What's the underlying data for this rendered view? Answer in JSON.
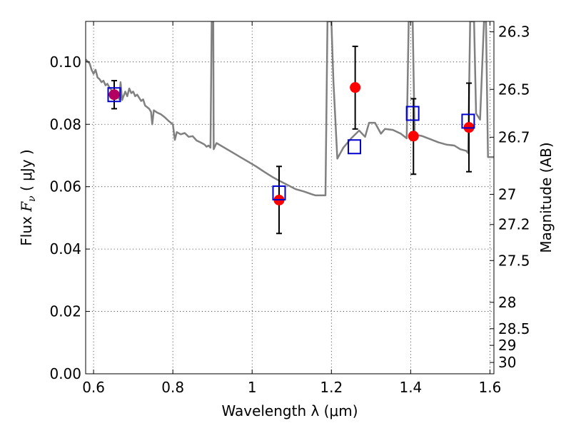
{
  "chart_data": {
    "type": "scatter",
    "xlabel": "Wavelength  λ (μm)",
    "ylabel": "Flux  Fν  ( μJy )",
    "ylabel_parts": {
      "prefix": "Flux ",
      "symbol": "F",
      "subscript": "ν",
      "suffix": " ( μJy )"
    },
    "right_ylabel": "Magnitude (AB)",
    "xlim": [
      0.58,
      1.61
    ],
    "ylim": [
      0.0,
      0.113
    ],
    "xticks": [
      0.6,
      0.8,
      1.0,
      1.2,
      1.4,
      1.6
    ],
    "xtick_labels": [
      "0.6",
      "0.8",
      "1",
      "1.2",
      "1.4",
      "1.6"
    ],
    "yticks": [
      0.0,
      0.02,
      0.04,
      0.06,
      0.08,
      0.1
    ],
    "ytick_labels": [
      "0.00",
      "0.02",
      "0.04",
      "0.06",
      "0.08",
      "0.10"
    ],
    "right_ticks": [
      {
        "label": "26.3",
        "mag": 26.3
      },
      {
        "label": "26.5",
        "mag": 26.5
      },
      {
        "label": "26.7",
        "mag": 26.7
      },
      {
        "label": "27",
        "mag": 27.0
      },
      {
        "label": "27.2",
        "mag": 27.2
      },
      {
        "label": "27.5",
        "mag": 27.5
      },
      {
        "label": "28",
        "mag": 28.0
      },
      {
        "label": "28.5",
        "mag": 28.5
      },
      {
        "label": "29",
        "mag": 29.0
      },
      {
        "label": "30",
        "mag": 30.0
      }
    ],
    "grid": true,
    "colors": {
      "model": "#808080",
      "observed": "#ff0000",
      "synthetic": "#0000cc",
      "errorbar": "#000000"
    },
    "series": [
      {
        "kind": "line",
        "points": [
          [
            0.58,
            0.1008
          ],
          [
            0.59,
            0.0995
          ],
          [
            0.595,
            0.0975
          ],
          [
            0.6,
            0.0962
          ],
          [
            0.605,
            0.0975
          ],
          [
            0.61,
            0.095
          ],
          [
            0.615,
            0.0945
          ],
          [
            0.62,
            0.0935
          ],
          [
            0.625,
            0.094
          ],
          [
            0.63,
            0.0925
          ],
          [
            0.635,
            0.093
          ],
          [
            0.64,
            0.0918
          ],
          [
            0.645,
            0.091
          ],
          [
            0.65,
            0.0905
          ],
          [
            0.655,
            0.0898
          ],
          [
            0.66,
            0.0895
          ],
          [
            0.665,
            0.088
          ],
          [
            0.668,
            0.0935
          ],
          [
            0.672,
            0.0878
          ],
          [
            0.68,
            0.0905
          ],
          [
            0.685,
            0.089
          ],
          [
            0.69,
            0.0915
          ],
          [
            0.695,
            0.09
          ],
          [
            0.7,
            0.0905
          ],
          [
            0.705,
            0.089
          ],
          [
            0.71,
            0.0895
          ],
          [
            0.72,
            0.0875
          ],
          [
            0.725,
            0.088
          ],
          [
            0.73,
            0.086
          ],
          [
            0.74,
            0.085
          ],
          [
            0.745,
            0.084
          ],
          [
            0.748,
            0.08
          ],
          [
            0.752,
            0.0845
          ],
          [
            0.76,
            0.0838
          ],
          [
            0.77,
            0.0832
          ],
          [
            0.78,
            0.0822
          ],
          [
            0.79,
            0.081
          ],
          [
            0.8,
            0.08
          ],
          [
            0.805,
            0.075
          ],
          [
            0.81,
            0.0775
          ],
          [
            0.82,
            0.0768
          ],
          [
            0.83,
            0.0772
          ],
          [
            0.84,
            0.076
          ],
          [
            0.85,
            0.0762
          ],
          [
            0.86,
            0.0748
          ],
          [
            0.87,
            0.0742
          ],
          [
            0.88,
            0.0735
          ],
          [
            0.885,
            0.0728
          ],
          [
            0.89,
            0.0732
          ],
          [
            0.895,
            0.0725
          ],
          [
            0.898,
            0.113
          ],
          [
            0.902,
            0.113
          ],
          [
            0.903,
            0.072
          ],
          [
            0.91,
            0.074
          ],
          [
            0.93,
            0.0725
          ],
          [
            0.95,
            0.071
          ],
          [
            0.97,
            0.0695
          ],
          [
            0.99,
            0.068
          ],
          [
            1.01,
            0.0665
          ],
          [
            1.03,
            0.0648
          ],
          [
            1.05,
            0.0632
          ],
          [
            1.07,
            0.0618
          ],
          [
            1.09,
            0.0605
          ],
          [
            1.11,
            0.0592
          ],
          [
            1.13,
            0.0585
          ],
          [
            1.15,
            0.0576
          ],
          [
            1.16,
            0.0572
          ],
          [
            1.18,
            0.0572
          ],
          [
            1.185,
            0.0572
          ],
          [
            1.19,
            0.113
          ],
          [
            1.2,
            0.113
          ],
          [
            1.205,
            0.094
          ],
          [
            1.215,
            0.069
          ],
          [
            1.23,
            0.0725
          ],
          [
            1.25,
            0.0755
          ],
          [
            1.27,
            0.078
          ],
          [
            1.285,
            0.076
          ],
          [
            1.295,
            0.0805
          ],
          [
            1.31,
            0.0805
          ],
          [
            1.325,
            0.077
          ],
          [
            1.335,
            0.0785
          ],
          [
            1.355,
            0.0782
          ],
          [
            1.375,
            0.077
          ],
          [
            1.39,
            0.0755
          ],
          [
            1.395,
            0.113
          ],
          [
            1.405,
            0.113
          ],
          [
            1.41,
            0.0768
          ],
          [
            1.43,
            0.0762
          ],
          [
            1.45,
            0.0752
          ],
          [
            1.47,
            0.0742
          ],
          [
            1.49,
            0.0735
          ],
          [
            1.51,
            0.0732
          ],
          [
            1.525,
            0.072
          ],
          [
            1.54,
            0.0715
          ],
          [
            1.545,
            0.0708
          ],
          [
            1.55,
            0.113
          ],
          [
            1.56,
            0.113
          ],
          [
            1.565,
            0.0835
          ],
          [
            1.575,
            0.0815
          ],
          [
            1.585,
            0.113
          ],
          [
            1.59,
            0.113
          ],
          [
            1.595,
            0.0695
          ],
          [
            1.61,
            0.0695
          ]
        ]
      },
      {
        "kind": "synthetic-photometry",
        "points": [
          [
            0.652,
            0.0895
          ],
          [
            1.068,
            0.058
          ],
          [
            1.258,
            0.0728
          ],
          [
            1.405,
            0.0835
          ],
          [
            1.545,
            0.081
          ]
        ]
      },
      {
        "kind": "observed-photometry",
        "points": [
          {
            "x": 0.652,
            "y": 0.0895,
            "lo": 0.085,
            "hi": 0.094
          },
          {
            "x": 1.068,
            "y": 0.0557,
            "lo": 0.045,
            "hi": 0.0665
          },
          {
            "x": 1.26,
            "y": 0.0918,
            "lo": 0.0785,
            "hi": 0.105
          },
          {
            "x": 1.407,
            "y": 0.0762,
            "lo": 0.064,
            "hi": 0.0882
          },
          {
            "x": 1.547,
            "y": 0.079,
            "lo": 0.0648,
            "hi": 0.0932
          }
        ]
      }
    ]
  }
}
